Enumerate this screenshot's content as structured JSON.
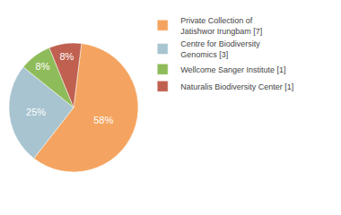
{
  "chart_data": {
    "type": "pie",
    "categories": [
      "Private Collection of\nJatishwor Irungbam [7]",
      "Centre for Biodiversity\nGenomics [3]",
      "Wellcome Sanger Institute [1]",
      "Naturalis Biodiversity Center [1]"
    ],
    "values": [
      58,
      25,
      8,
      8
    ],
    "value_labels": [
      "58%",
      "25%",
      "8%",
      "8%"
    ],
    "colors": [
      "#F4A460",
      "#A8C4D0",
      "#8FBC5A",
      "#C06050"
    ],
    "data_labels": true,
    "legend": "upper right"
  }
}
